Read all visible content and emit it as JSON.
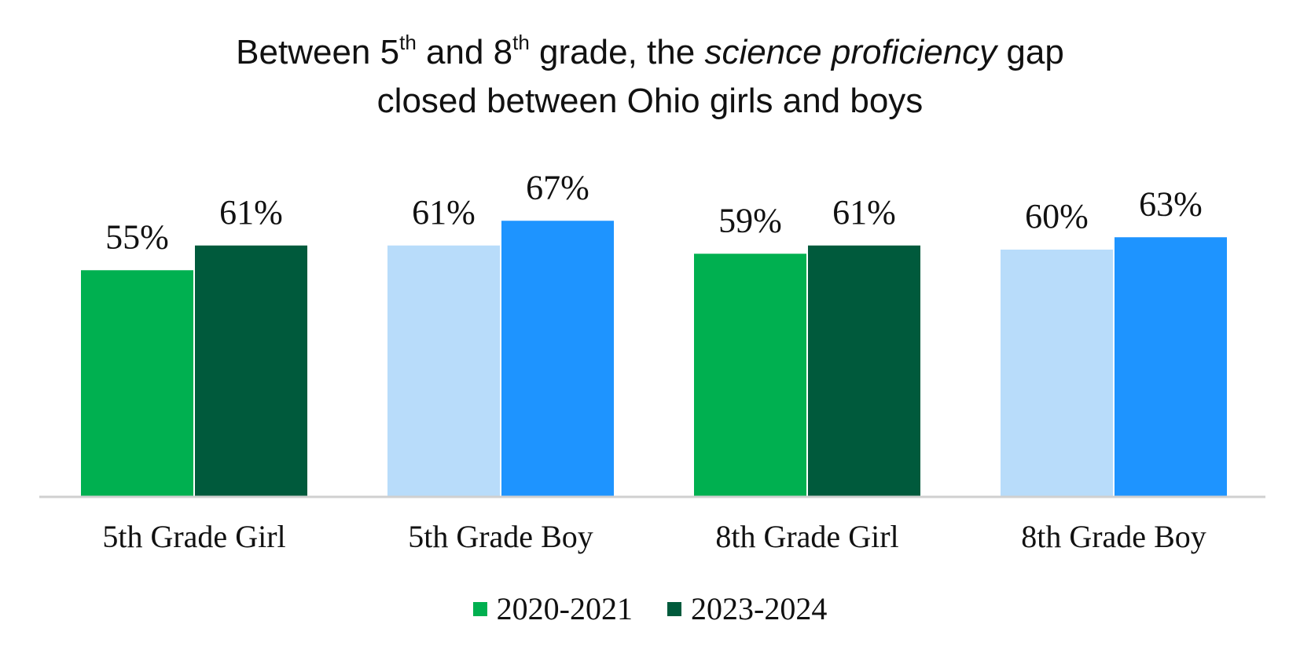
{
  "title": {
    "p1": "Between 5",
    "sup1": "th",
    "p2": " and 8",
    "sup2": "th",
    "p3": " grade, the ",
    "em": "science proficiency",
    "p4": " gap",
    "line2": "closed between Ohio girls and boys"
  },
  "chart_data": {
    "type": "bar",
    "title": "Between 5th and 8th grade, the science proficiency gap closed between Ohio girls and boys",
    "categories": [
      "5th Grade Girl",
      "5th Grade Boy",
      "8th Grade Girl",
      "8th Grade Boy"
    ],
    "series": [
      {
        "name": "2020-2021",
        "values": [
          55,
          61,
          59,
          60
        ],
        "labels": [
          "55%",
          "61%",
          "59%",
          "60%"
        ]
      },
      {
        "name": "2023-2024",
        "values": [
          61,
          67,
          61,
          63
        ],
        "labels": [
          "61%",
          "67%",
          "61%",
          "63%"
        ]
      }
    ],
    "bar_colors": [
      [
        "#00b050",
        "#005a3c"
      ],
      [
        "#b8dcfa",
        "#1e94ff"
      ],
      [
        "#00b050",
        "#005a3c"
      ],
      [
        "#b8dcfa",
        "#1e94ff"
      ]
    ],
    "ylim": [
      0,
      100
    ],
    "axis_color": "#d0d0d0",
    "grid": false,
    "legend_position": "bottom"
  },
  "legend": [
    {
      "label": "2020-2021",
      "color": "#00b050"
    },
    {
      "label": "2023-2024",
      "color": "#005a3c"
    }
  ]
}
